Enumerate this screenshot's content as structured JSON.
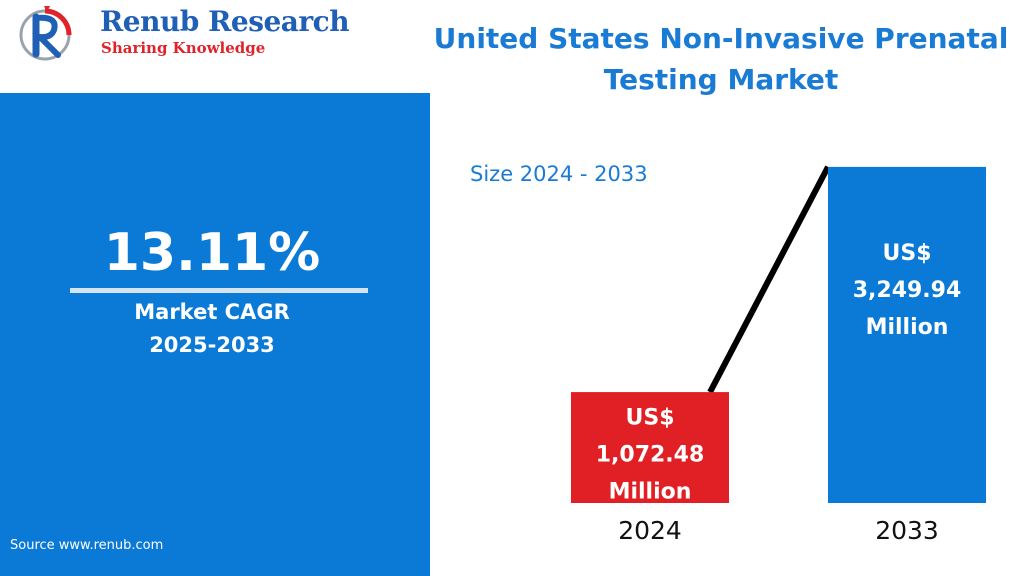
{
  "brand": {
    "name": "Renub Research",
    "tagline": "Sharing Knowledge",
    "colors": {
      "primary": "#1f5fb5",
      "accent": "#e0222a"
    }
  },
  "title": "United States Non-Invasive Prenatal Testing Market",
  "cagr": {
    "value": "13.11%",
    "label_line1": "Market CAGR",
    "label_line2": "2025-2033"
  },
  "source": "Source  www.renub.com",
  "size_label": "Size 2024 - 2033",
  "chart_data": {
    "type": "bar",
    "categories": [
      "2024",
      "2033"
    ],
    "values": [
      1072.48,
      3249.94
    ],
    "value_labels": [
      [
        "US$",
        "1,072.48",
        "Million"
      ],
      [
        "US$",
        "3,249.94",
        "Million"
      ]
    ],
    "colors": [
      "#e02025",
      "#0b7ad6"
    ],
    "trend_line": true,
    "ylim": [
      0,
      3800
    ]
  }
}
